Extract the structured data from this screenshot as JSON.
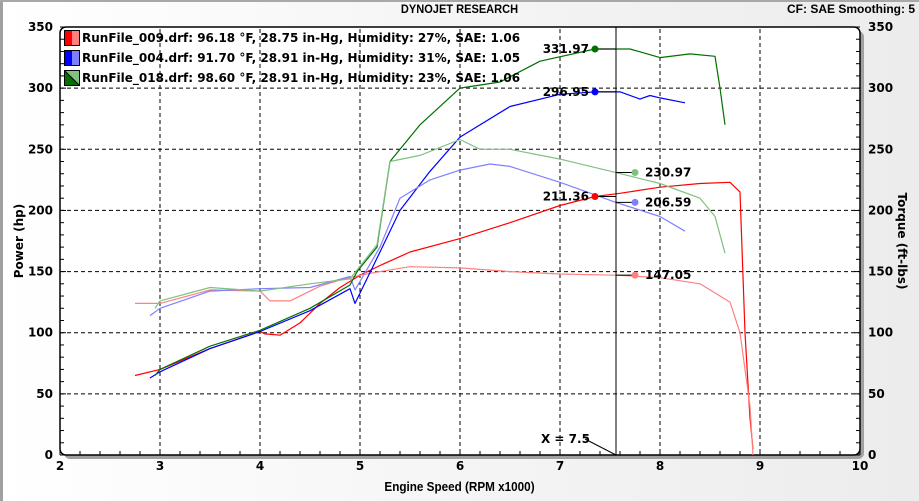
{
  "header": {
    "title": "DYNOJET RESEARCH",
    "cf_smoothing": "CF: SAE  Smoothing: 5"
  },
  "legend": [
    {
      "label": "RunFile_009.drf: 96.18 °F, 28.75 in-Hg, Humidity: 27%, SAE: 1.06",
      "color_dark": "#ff0000",
      "color_light": "#ff8080"
    },
    {
      "label": "RunFile_004.drf: 91.70 °F, 28.91 in-Hg, Humidity: 31%, SAE: 1.05",
      "color_dark": "#0000ff",
      "color_light": "#8080ff"
    },
    {
      "label": "RunFile_018.drf: 98.60 °F, 28.91 in-Hg, Humidity: 23%, SAE: 1.06",
      "color_dark": "#007000",
      "color_light": "#80c080"
    }
  ],
  "cursor": {
    "label": "X = 7.5",
    "x": 7.56
  },
  "markers": {
    "green_power": "331.97",
    "blue_power": "296.95",
    "red_power": "211.36",
    "green_torque": "230.97",
    "blue_torque": "206.59",
    "red_torque": "147.05"
  },
  "axes": {
    "x_title": "Engine Speed (RPM x1000)",
    "y_left_title": "Power (hp)",
    "y_right_title": "Torque (ft-lbs)"
  },
  "chart_data": {
    "type": "line",
    "title": "DYNOJET RESEARCH",
    "subtitle": "CF: SAE  Smoothing: 5",
    "xlabel": "Engine Speed (RPM x1000)",
    "ylabel": "Power (hp)",
    "ylabel_right": "Torque (ft-lbs)",
    "xlim": [
      2,
      10
    ],
    "ylim": [
      0,
      350
    ],
    "ylim_right": [
      0,
      350
    ],
    "x_ticks": [
      2,
      3,
      4,
      5,
      6,
      7,
      8,
      9,
      10
    ],
    "y_ticks": [
      0,
      50,
      100,
      150,
      200,
      250,
      300,
      350
    ],
    "grid": true,
    "legend_position": "top-left",
    "cursor_x": 7.5,
    "series": [
      {
        "name": "RunFile_009 Power (hp)",
        "color": "#ff0000",
        "axis": "left",
        "x": [
          2.75,
          3.0,
          3.5,
          4.0,
          4.05,
          4.2,
          4.4,
          4.6,
          4.8,
          5.0,
          5.2,
          5.5,
          6.0,
          6.5,
          7.0,
          7.35,
          7.6,
          8.0,
          8.4,
          8.7,
          8.8,
          8.85,
          8.9,
          8.93
        ],
        "y": [
          65,
          70,
          87,
          101,
          99,
          98,
          108,
          124,
          137,
          147,
          155,
          166,
          177,
          190,
          204,
          211.36,
          214,
          219,
          222,
          223,
          215,
          100,
          30,
          5
        ]
      },
      {
        "name": "RunFile_009 Torque (ft-lbs)",
        "color": "#ff8080",
        "axis": "right",
        "x": [
          2.75,
          3.0,
          3.5,
          4.0,
          4.1,
          4.3,
          4.6,
          4.8,
          5.0,
          5.2,
          5.5,
          6.0,
          6.5,
          7.0,
          7.56,
          8.0,
          8.4,
          8.7,
          8.8,
          8.9,
          8.93
        ],
        "y": [
          124,
          124,
          135,
          134,
          126,
          126,
          138,
          143,
          147,
          150,
          154,
          153,
          150,
          148,
          147.05,
          145,
          140,
          125,
          100,
          40,
          0
        ]
      },
      {
        "name": "RunFile_004 Power (hp)",
        "color": "#0000ff",
        "axis": "left",
        "x": [
          2.9,
          3.0,
          3.5,
          4.0,
          4.5,
          4.9,
          4.95,
          5.2,
          5.4,
          5.7,
          6.0,
          6.5,
          7.0,
          7.35,
          7.6,
          7.8,
          7.9,
          8.0,
          8.25
        ],
        "y": [
          63,
          68,
          87,
          101,
          118,
          136,
          124,
          166,
          200,
          232,
          260,
          285,
          295,
          296.95,
          297,
          291,
          294,
          292,
          288
        ]
      },
      {
        "name": "RunFile_004 Torque (ft-lbs)",
        "color": "#8080ff",
        "axis": "right",
        "x": [
          2.9,
          3.0,
          3.5,
          4.0,
          4.5,
          4.9,
          4.95,
          5.2,
          5.4,
          5.7,
          6.0,
          6.3,
          6.5,
          7.0,
          7.56,
          8.0,
          8.25
        ],
        "y": [
          114,
          120,
          134,
          136,
          137,
          146,
          135,
          170,
          210,
          225,
          233,
          238,
          236,
          223,
          206.59,
          195,
          183
        ]
      },
      {
        "name": "RunFile_018 Power (hp)",
        "color": "#007000",
        "axis": "left",
        "x": [
          2.95,
          3.0,
          3.5,
          4.0,
          4.5,
          4.9,
          4.97,
          5.17,
          5.3,
          5.6,
          6.0,
          6.4,
          6.8,
          7.35,
          7.7,
          8.0,
          8.3,
          8.55,
          8.6,
          8.65
        ],
        "y": [
          65,
          70,
          89,
          102,
          120,
          139,
          150,
          170,
          240,
          270,
          300,
          305,
          322,
          331.97,
          332,
          325,
          328,
          326,
          300,
          270
        ]
      },
      {
        "name": "RunFile_018 Torque (ft-lbs)",
        "color": "#80c080",
        "axis": "right",
        "x": [
          2.95,
          3.0,
          3.5,
          4.0,
          4.5,
          4.9,
          5.17,
          5.3,
          5.6,
          6.0,
          6.2,
          6.5,
          7.0,
          7.56,
          8.0,
          8.4,
          8.55,
          8.65
        ],
        "y": [
          120,
          126,
          137,
          134,
          140,
          144,
          172,
          240,
          245,
          258,
          250,
          250,
          242,
          230.97,
          222,
          210,
          195,
          165
        ]
      }
    ],
    "annotations": [
      {
        "text": "331.97",
        "x": 7.35,
        "y": 331.97,
        "series": "RunFile_018 Power"
      },
      {
        "text": "296.95",
        "x": 7.35,
        "y": 296.95,
        "series": "RunFile_004 Power"
      },
      {
        "text": "211.36",
        "x": 7.35,
        "y": 211.36,
        "series": "RunFile_009 Power"
      },
      {
        "text": "230.97",
        "x": 7.75,
        "y": 230.97,
        "series": "RunFile_018 Torque"
      },
      {
        "text": "206.59",
        "x": 7.75,
        "y": 206.59,
        "series": "RunFile_004 Torque"
      },
      {
        "text": "147.05",
        "x": 7.75,
        "y": 147.05,
        "series": "RunFile_009 Torque"
      },
      {
        "text": "X = 7.5",
        "x": 7.5,
        "y": 0
      }
    ]
  }
}
